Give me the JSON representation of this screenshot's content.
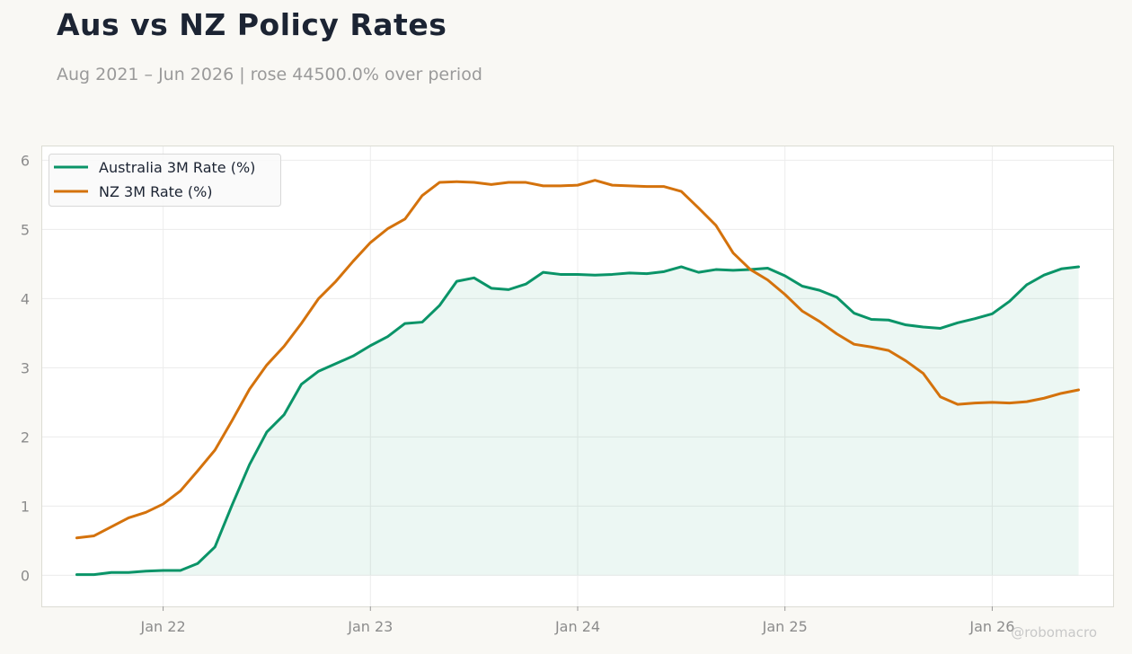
{
  "title": "Aus vs NZ Policy Rates",
  "subtitle": "Aug 2021 – Jun 2026 | rose 44500.0% over period",
  "watermark": "@robomacro",
  "colors": {
    "australia": "#0a9468",
    "nz": "#d4720c",
    "fill": "#0a9468",
    "background": "#f9f8f4",
    "plot_bg": "#ffffff",
    "grid": "#ececec"
  },
  "chart_data": {
    "type": "line",
    "title": "Aus vs NZ Policy Rates",
    "x_tick_labels": [
      "Jan 22",
      "Jan 23",
      "Jan 24",
      "Jan 25",
      "Jan 26"
    ],
    "x_ticks": [
      "2022-01",
      "2023-01",
      "2024-01",
      "2025-01",
      "2026-01"
    ],
    "y_ticks": [
      0,
      1,
      2,
      3,
      4,
      5,
      6
    ],
    "ylim": [
      -0.45,
      6.2
    ],
    "xlim": [
      "2021-06",
      "2026-08"
    ],
    "grid": true,
    "legend_position": "top-left",
    "x": [
      "2021-08",
      "2021-09",
      "2021-10",
      "2021-11",
      "2021-12",
      "2022-01",
      "2022-02",
      "2022-03",
      "2022-04",
      "2022-05",
      "2022-06",
      "2022-07",
      "2022-08",
      "2022-09",
      "2022-10",
      "2022-11",
      "2022-12",
      "2023-01",
      "2023-02",
      "2023-03",
      "2023-04",
      "2023-05",
      "2023-06",
      "2023-07",
      "2023-08",
      "2023-09",
      "2023-10",
      "2023-11",
      "2023-12",
      "2024-01",
      "2024-02",
      "2024-03",
      "2024-04",
      "2024-05",
      "2024-06",
      "2024-07",
      "2024-08",
      "2024-09",
      "2024-10",
      "2024-11",
      "2024-12",
      "2025-01",
      "2025-02",
      "2025-03",
      "2025-04",
      "2025-05",
      "2025-06",
      "2025-07",
      "2025-08",
      "2025-09",
      "2025-10",
      "2025-11",
      "2025-12",
      "2026-01",
      "2026-02",
      "2026-03",
      "2026-04",
      "2026-05",
      "2026-06"
    ],
    "series": [
      {
        "name": "Australia 3M Rate (%)",
        "filled": true,
        "values": [
          0.01,
          0.01,
          0.04,
          0.04,
          0.06,
          0.07,
          0.07,
          0.17,
          0.41,
          1.02,
          1.6,
          2.07,
          2.32,
          2.76,
          2.95,
          3.06,
          3.17,
          3.32,
          3.45,
          3.64,
          3.66,
          3.9,
          4.25,
          4.3,
          4.15,
          4.13,
          4.21,
          4.38,
          4.35,
          4.35,
          4.34,
          4.35,
          4.37,
          4.36,
          4.39,
          4.46,
          4.38,
          4.42,
          4.41,
          4.42,
          4.44,
          4.33,
          4.18,
          4.12,
          4.02,
          3.79,
          3.7,
          3.69,
          3.62,
          3.59,
          3.57,
          3.65,
          3.71,
          3.78,
          3.96,
          4.2,
          4.34,
          4.43,
          4.46
        ]
      },
      {
        "name": "NZ 3M Rate (%)",
        "filled": false,
        "values": [
          0.54,
          0.57,
          0.7,
          0.83,
          0.91,
          1.03,
          1.22,
          1.51,
          1.81,
          2.24,
          2.69,
          3.04,
          3.31,
          3.64,
          4.0,
          4.25,
          4.54,
          4.81,
          5.01,
          5.15,
          5.49,
          5.68,
          5.69,
          5.68,
          5.65,
          5.68,
          5.68,
          5.63,
          5.63,
          5.64,
          5.71,
          5.64,
          5.63,
          5.62,
          5.62,
          5.55,
          5.31,
          5.06,
          4.66,
          4.42,
          4.27,
          4.06,
          3.82,
          3.67,
          3.49,
          3.34,
          3.3,
          3.25,
          3.1,
          2.92,
          2.58,
          2.47,
          2.49,
          2.5,
          2.49,
          2.51,
          2.56,
          2.63,
          2.68
        ]
      }
    ]
  }
}
